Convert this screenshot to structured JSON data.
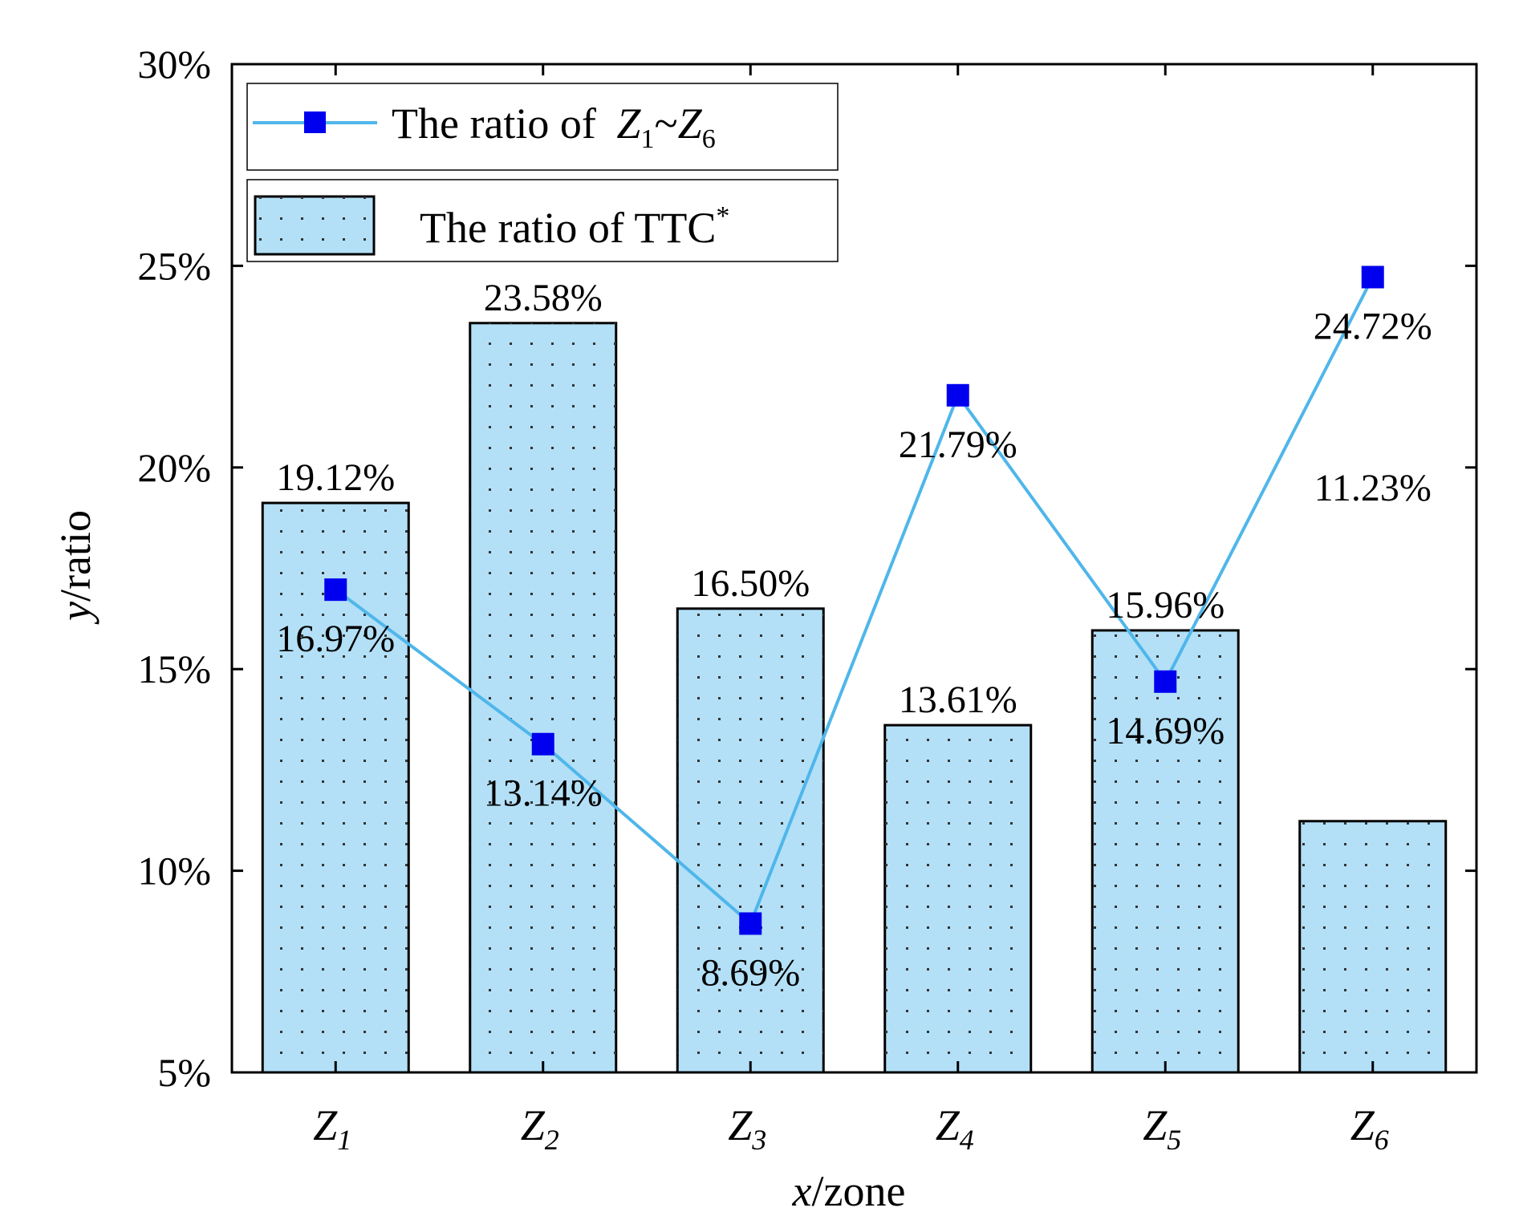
{
  "chart_data": {
    "type": "bar",
    "categories": [
      {
        "main": "Z",
        "sub": "1"
      },
      {
        "main": "Z",
        "sub": "2"
      },
      {
        "main": "Z",
        "sub": "3"
      },
      {
        "main": "Z",
        "sub": "4"
      },
      {
        "main": "Z",
        "sub": "5"
      },
      {
        "main": "Z",
        "sub": "6"
      }
    ],
    "series": [
      {
        "name": "The ratio of TTC*",
        "kind": "bar",
        "values": [
          19.12,
          23.58,
          16.5,
          13.61,
          15.96,
          11.23
        ],
        "labels": [
          "19.12%",
          "23.58%",
          "16.50%",
          "13.61%",
          "15.96%",
          "11.23%"
        ],
        "color": "#b3e0f7"
      },
      {
        "name": "The ratio of Z1~Z6",
        "kind": "line",
        "values": [
          16.97,
          13.14,
          8.69,
          21.79,
          14.69,
          24.72
        ],
        "labels": [
          "16.97%",
          "13.14%",
          "8.69%",
          "21.79%",
          "14.69%",
          "24.72%"
        ],
        "color": "#4fb6ea",
        "marker_color": "#0000ee"
      }
    ],
    "xlabel": {
      "italic": "x",
      "rest": "/zone"
    },
    "ylabel": {
      "italic": "y",
      "rest": "/ratio"
    },
    "ylim": [
      5,
      30
    ],
    "yticks": [
      5,
      10,
      15,
      20,
      25,
      30
    ],
    "ytick_labels": [
      "5%",
      "10%",
      "15%",
      "20%",
      "25%",
      "30%"
    ],
    "legend": {
      "placement": "top-left",
      "line_entry": {
        "prefix": "The ratio of ",
        "a": "Z",
        "a_sub": "1",
        "sep": "~",
        "b": "Z",
        "b_sub": "6"
      },
      "bar_entry": {
        "text": "The ratio of TTC",
        "sup": "*"
      }
    },
    "grid": false
  }
}
